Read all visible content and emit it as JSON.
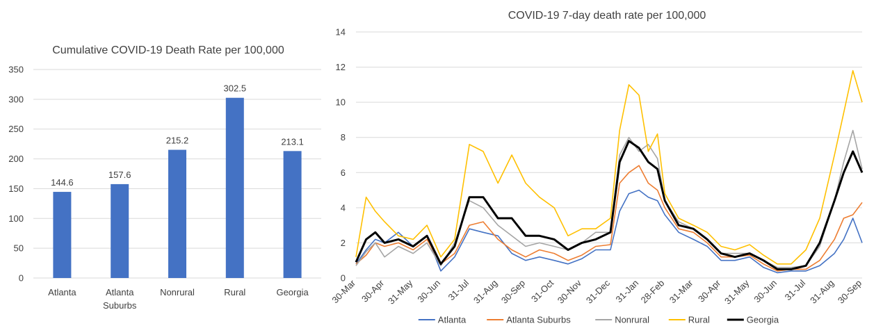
{
  "chart_data": [
    {
      "type": "bar",
      "title": "Cumulative  COVID-19 Death Rate  per 100,000",
      "categories": [
        [
          "Atlanta"
        ],
        [
          "Atlanta",
          "Suburbs"
        ],
        [
          "Nonrural"
        ],
        [
          "Rural"
        ],
        [
          "Georgia"
        ]
      ],
      "values": [
        144.6,
        157.6,
        215.2,
        302.5,
        213.1
      ],
      "data_labels": [
        "144.6",
        "157.6",
        "215.2",
        "302.5",
        "213.1"
      ],
      "ylim": [
        0,
        350
      ],
      "yticks": [
        0,
        50,
        100,
        150,
        200,
        250,
        300,
        350
      ],
      "grid": true,
      "color": "#4472c4"
    },
    {
      "type": "line",
      "title": "COVID-19 7-day death rate per 100,000",
      "ylim": [
        0,
        14
      ],
      "yticks": [
        0,
        2,
        4,
        6,
        8,
        10,
        12,
        14
      ],
      "grid": true,
      "legend_position": "bottom",
      "x_start": "2020-03-30",
      "x_end": "2021-09-30",
      "xticks": [
        {
          "label": "30-Mar",
          "date": "2020-03-30"
        },
        {
          "label": "30-Apr",
          "date": "2020-04-30"
        },
        {
          "label": "31-May",
          "date": "2020-05-31"
        },
        {
          "label": "30-Jun",
          "date": "2020-06-30"
        },
        {
          "label": "31-Jul",
          "date": "2020-07-31"
        },
        {
          "label": "31-Aug",
          "date": "2020-08-31"
        },
        {
          "label": "30-Sep",
          "date": "2020-09-30"
        },
        {
          "label": "31-Oct",
          "date": "2020-10-31"
        },
        {
          "label": "30-Nov",
          "date": "2020-11-30"
        },
        {
          "label": "31-Dec",
          "date": "2020-12-31"
        },
        {
          "label": "31-Jan",
          "date": "2021-01-31"
        },
        {
          "label": "28-Feb",
          "date": "2021-02-28"
        },
        {
          "label": "31-Mar",
          "date": "2021-03-31"
        },
        {
          "label": "30-Apr",
          "date": "2021-04-30"
        },
        {
          "label": "31-May",
          "date": "2021-05-31"
        },
        {
          "label": "30-Jun",
          "date": "2021-06-30"
        },
        {
          "label": "31-Jul",
          "date": "2021-07-31"
        },
        {
          "label": "31-Aug",
          "date": "2021-08-31"
        },
        {
          "label": "30-Sep",
          "date": "2021-09-30"
        }
      ],
      "series": [
        {
          "name": "Atlanta",
          "color": "#4472c4",
          "x": [
            "2020-03-30",
            "2020-04-10",
            "2020-04-20",
            "2020-04-30",
            "2020-05-15",
            "2020-05-31",
            "2020-06-15",
            "2020-06-30",
            "2020-07-15",
            "2020-07-31",
            "2020-08-15",
            "2020-08-31",
            "2020-09-15",
            "2020-09-30",
            "2020-10-15",
            "2020-10-31",
            "2020-11-15",
            "2020-11-30",
            "2020-12-15",
            "2020-12-31",
            "2021-01-10",
            "2021-01-20",
            "2021-01-31",
            "2021-02-10",
            "2021-02-20",
            "2021-02-28",
            "2021-03-15",
            "2021-03-31",
            "2021-04-15",
            "2021-04-30",
            "2021-05-15",
            "2021-05-31",
            "2021-06-15",
            "2021-06-30",
            "2021-07-15",
            "2021-07-31",
            "2021-08-15",
            "2021-08-31",
            "2021-09-10",
            "2021-09-20",
            "2021-09-30"
          ],
          "y": [
            0.8,
            1.6,
            2.2,
            2.0,
            2.6,
            1.8,
            2.4,
            0.4,
            1.2,
            2.8,
            2.6,
            2.4,
            1.4,
            1.0,
            1.2,
            1.0,
            0.8,
            1.1,
            1.6,
            1.6,
            3.8,
            4.8,
            5.0,
            4.6,
            4.4,
            3.6,
            2.6,
            2.2,
            1.8,
            1.0,
            1.0,
            1.2,
            0.6,
            0.3,
            0.4,
            0.4,
            0.7,
            1.4,
            2.2,
            3.4,
            2.0
          ]
        },
        {
          "name": "Atlanta Suburbs",
          "color": "#ed7d31",
          "x": [
            "2020-03-30",
            "2020-04-10",
            "2020-04-20",
            "2020-04-30",
            "2020-05-15",
            "2020-05-31",
            "2020-06-15",
            "2020-06-30",
            "2020-07-15",
            "2020-07-31",
            "2020-08-15",
            "2020-08-31",
            "2020-09-15",
            "2020-09-30",
            "2020-10-15",
            "2020-10-31",
            "2020-11-15",
            "2020-11-30",
            "2020-12-15",
            "2020-12-31",
            "2021-01-10",
            "2021-01-20",
            "2021-01-31",
            "2021-02-10",
            "2021-02-20",
            "2021-02-28",
            "2021-03-15",
            "2021-03-31",
            "2021-04-15",
            "2021-04-30",
            "2021-05-15",
            "2021-05-31",
            "2021-06-15",
            "2021-06-30",
            "2021-07-15",
            "2021-07-31",
            "2021-08-15",
            "2021-08-31",
            "2021-09-10",
            "2021-09-20",
            "2021-09-30"
          ],
          "y": [
            0.8,
            1.3,
            2.0,
            1.8,
            2.0,
            1.6,
            2.2,
            0.8,
            1.4,
            3.0,
            3.2,
            2.2,
            1.6,
            1.2,
            1.6,
            1.4,
            1.0,
            1.3,
            1.8,
            1.9,
            5.4,
            6.0,
            6.4,
            5.4,
            5.0,
            4.0,
            2.8,
            2.6,
            2.0,
            1.2,
            1.2,
            1.3,
            0.8,
            0.4,
            0.5,
            0.5,
            1.0,
            2.2,
            3.4,
            3.6,
            4.3
          ]
        },
        {
          "name": "Nonrural",
          "color": "#a5a5a5",
          "x": [
            "2020-03-30",
            "2020-04-10",
            "2020-04-20",
            "2020-04-30",
            "2020-05-15",
            "2020-05-31",
            "2020-06-15",
            "2020-06-30",
            "2020-07-15",
            "2020-07-31",
            "2020-08-15",
            "2020-08-31",
            "2020-09-15",
            "2020-09-30",
            "2020-10-15",
            "2020-10-31",
            "2020-11-15",
            "2020-11-30",
            "2020-12-15",
            "2020-12-31",
            "2021-01-10",
            "2021-01-20",
            "2021-01-31",
            "2021-02-10",
            "2021-02-20",
            "2021-02-28",
            "2021-03-15",
            "2021-03-31",
            "2021-04-15",
            "2021-04-30",
            "2021-05-15",
            "2021-05-31",
            "2021-06-15",
            "2021-06-30",
            "2021-07-15",
            "2021-07-31",
            "2021-08-15",
            "2021-08-31",
            "2021-09-10",
            "2021-09-20",
            "2021-09-30"
          ],
          "y": [
            0.7,
            1.5,
            2.0,
            1.2,
            1.8,
            1.4,
            2.0,
            0.7,
            2.0,
            4.4,
            4.0,
            3.0,
            2.4,
            1.8,
            2.0,
            1.8,
            1.6,
            2.0,
            2.6,
            2.6,
            7.0,
            8.0,
            7.2,
            7.6,
            6.8,
            4.4,
            3.2,
            2.8,
            2.2,
            1.4,
            1.4,
            1.4,
            1.0,
            0.6,
            0.6,
            0.7,
            1.8,
            4.4,
            6.6,
            8.4,
            6.2
          ]
        },
        {
          "name": "Rural",
          "color": "#ffc000",
          "x": [
            "2020-03-30",
            "2020-04-10",
            "2020-04-20",
            "2020-04-30",
            "2020-05-15",
            "2020-05-31",
            "2020-06-15",
            "2020-06-30",
            "2020-07-15",
            "2020-07-31",
            "2020-08-15",
            "2020-08-31",
            "2020-09-15",
            "2020-09-30",
            "2020-10-15",
            "2020-10-31",
            "2020-11-15",
            "2020-11-30",
            "2020-12-15",
            "2020-12-31",
            "2021-01-10",
            "2021-01-20",
            "2021-01-31",
            "2021-02-10",
            "2021-02-20",
            "2021-02-28",
            "2021-03-15",
            "2021-03-31",
            "2021-04-15",
            "2021-04-30",
            "2021-05-15",
            "2021-05-31",
            "2021-06-15",
            "2021-06-30",
            "2021-07-15",
            "2021-07-31",
            "2021-08-15",
            "2021-08-31",
            "2021-09-10",
            "2021-09-20",
            "2021-09-30"
          ],
          "y": [
            1.2,
            4.6,
            3.8,
            3.2,
            2.4,
            2.2,
            3.0,
            1.2,
            2.2,
            7.6,
            7.2,
            5.4,
            7.0,
            5.4,
            4.6,
            4.0,
            2.4,
            2.8,
            2.8,
            3.4,
            8.4,
            11.0,
            10.4,
            7.2,
            8.2,
            4.8,
            3.4,
            3.0,
            2.6,
            1.8,
            1.6,
            1.9,
            1.3,
            0.8,
            0.8,
            1.6,
            3.4,
            7.0,
            9.4,
            11.8,
            10.0
          ]
        },
        {
          "name": "Georgia",
          "color": "#000000",
          "x": [
            "2020-03-30",
            "2020-04-10",
            "2020-04-20",
            "2020-04-30",
            "2020-05-15",
            "2020-05-31",
            "2020-06-15",
            "2020-06-30",
            "2020-07-15",
            "2020-07-31",
            "2020-08-15",
            "2020-08-31",
            "2020-09-15",
            "2020-09-30",
            "2020-10-15",
            "2020-10-31",
            "2020-11-15",
            "2020-11-30",
            "2020-12-15",
            "2020-12-31",
            "2021-01-10",
            "2021-01-20",
            "2021-01-31",
            "2021-02-10",
            "2021-02-20",
            "2021-02-28",
            "2021-03-15",
            "2021-03-31",
            "2021-04-15",
            "2021-04-30",
            "2021-05-15",
            "2021-05-31",
            "2021-06-15",
            "2021-06-30",
            "2021-07-15",
            "2021-07-31",
            "2021-08-15",
            "2021-08-31",
            "2021-09-10",
            "2021-09-20",
            "2021-09-30"
          ],
          "y": [
            0.9,
            2.2,
            2.6,
            2.0,
            2.2,
            1.8,
            2.4,
            0.8,
            1.8,
            4.6,
            4.6,
            3.4,
            3.4,
            2.4,
            2.4,
            2.2,
            1.6,
            2.0,
            2.2,
            2.6,
            6.6,
            7.8,
            7.4,
            6.6,
            6.2,
            4.4,
            3.0,
            2.8,
            2.2,
            1.4,
            1.2,
            1.4,
            1.0,
            0.5,
            0.5,
            0.7,
            2.0,
            4.4,
            6.0,
            7.2,
            6.0
          ]
        }
      ]
    }
  ]
}
